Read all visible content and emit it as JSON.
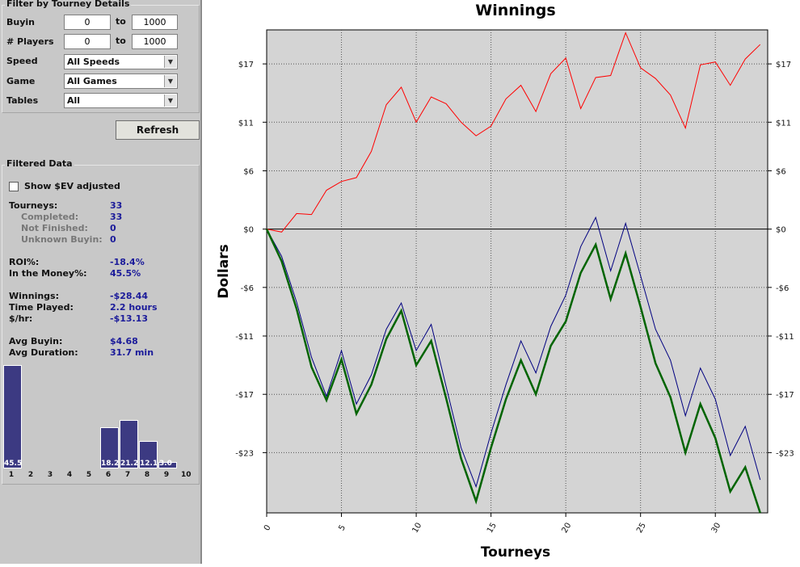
{
  "filter": {
    "title": "Filter by Tourney Details",
    "buyin_label": "Buyin",
    "buyin_from": "0",
    "buyin_to": "1000",
    "players_label": "# Players",
    "players_from": "0",
    "players_to": "1000",
    "to_label": "to",
    "speed_label": "Speed",
    "speed_value": "All Speeds",
    "game_label": "Game",
    "game_value": "All Games",
    "tables_label": "Tables",
    "tables_value": "All",
    "refresh_label": "Refresh"
  },
  "filtered": {
    "title": "Filtered Data",
    "ev_label": "Show $EV adjusted",
    "ev_checked": false,
    "stats": [
      {
        "label": "Tourneys:",
        "value": "33",
        "indent": false,
        "grey": false
      },
      {
        "label": "Completed:",
        "value": "33",
        "indent": true,
        "grey": true
      },
      {
        "label": "Not Finished:",
        "value": "0",
        "indent": true,
        "grey": true
      },
      {
        "label": "Unknown Buyin:",
        "value": "0",
        "indent": true,
        "grey": true
      },
      {
        "label": "ROI%:",
        "value": "-18.4%",
        "indent": false,
        "grey": false
      },
      {
        "label": "In the Money%:",
        "value": "45.5%",
        "indent": false,
        "grey": false
      },
      {
        "label": "Winnings:",
        "value": "-$28.44",
        "indent": false,
        "grey": false
      },
      {
        "label": "Time Played:",
        "value": "2.2 hours",
        "indent": false,
        "grey": false
      },
      {
        "label": "$/hr:",
        "value": "-$13.13",
        "indent": false,
        "grey": false
      },
      {
        "label": "Avg Buyin:",
        "value": "$4.68",
        "indent": false,
        "grey": false
      },
      {
        "label": "Avg Duration:",
        "value": "31.7 min",
        "indent": false,
        "grey": false
      }
    ]
  },
  "histogram": {
    "labels": [
      "1",
      "2",
      "3",
      "4",
      "5",
      "6",
      "7",
      "8",
      "9",
      "10"
    ],
    "values": [
      45.5,
      0,
      0,
      0,
      0,
      18.2,
      21.2,
      12.1,
      3.0,
      0
    ],
    "value_labels": [
      "45.5",
      "",
      "",
      "",
      "",
      "18.2",
      "21.2",
      "12.1",
      "3.0",
      ""
    ],
    "color": "#3c3a82"
  },
  "chart_data": {
    "type": "line",
    "title": "Winnings",
    "xlabel": "Tourneys",
    "ylabel": "Dollars",
    "xlim": [
      0,
      33.5
    ],
    "ylim": [
      -29.2,
      20.5
    ],
    "x_ticks": [
      "0",
      "5",
      "10",
      "15",
      "20",
      "25",
      "30"
    ],
    "y_ticks": [
      {
        "value": 17,
        "label": "$17"
      },
      {
        "value": 11,
        "label": "$11"
      },
      {
        "value": 6,
        "label": "$6"
      },
      {
        "value": 0,
        "label": "$0"
      },
      {
        "value": -6,
        "label": "-$6"
      },
      {
        "value": -11,
        "label": "-$11"
      },
      {
        "value": -17,
        "label": "-$17"
      },
      {
        "value": -23,
        "label": "-$23"
      }
    ],
    "grid": true,
    "background": "#d4d4d4",
    "series": [
      {
        "color": "#ff0000",
        "width": 1,
        "values": [
          0,
          -0.3,
          1.6,
          1.5,
          4.0,
          4.9,
          5.3,
          8.0,
          12.8,
          14.6,
          11.0,
          13.6,
          12.9,
          11.0,
          9.6,
          10.6,
          13.4,
          14.8,
          12.1,
          16.0,
          17.6,
          12.4,
          15.6,
          15.8,
          20.2,
          16.6,
          15.5,
          13.8,
          10.4,
          16.9,
          17.2,
          14.8,
          17.5,
          19.0
        ]
      },
      {
        "color": "#000080",
        "width": 1,
        "values": [
          0,
          -2.8,
          -7.5,
          -13.2,
          -17.2,
          -12.5,
          -18.0,
          -15.0,
          -10.3,
          -7.6,
          -12.5,
          -9.8,
          -16.2,
          -22.5,
          -26.5,
          -21.0,
          -16.0,
          -11.5,
          -14.8,
          -10.0,
          -6.8,
          -1.8,
          1.2,
          -4.3,
          0.6,
          -4.8,
          -10.3,
          -13.5,
          -19.2,
          -14.3,
          -17.5,
          -23.3,
          -20.3,
          -25.8
        ]
      },
      {
        "color": "#006400",
        "width": 2.5,
        "values": [
          0,
          -3.3,
          -8.2,
          -14.2,
          -17.6,
          -13.4,
          -19.0,
          -16.0,
          -11.3,
          -8.4,
          -14.0,
          -11.5,
          -17.4,
          -23.6,
          -28.0,
          -22.5,
          -17.5,
          -13.5,
          -17.0,
          -12.0,
          -9.5,
          -4.5,
          -1.6,
          -7.2,
          -2.5,
          -8.0,
          -13.8,
          -17.3,
          -23.0,
          -18.0,
          -21.5,
          -27.0,
          -24.5,
          -29.2
        ]
      }
    ],
    "zero_line": true
  }
}
